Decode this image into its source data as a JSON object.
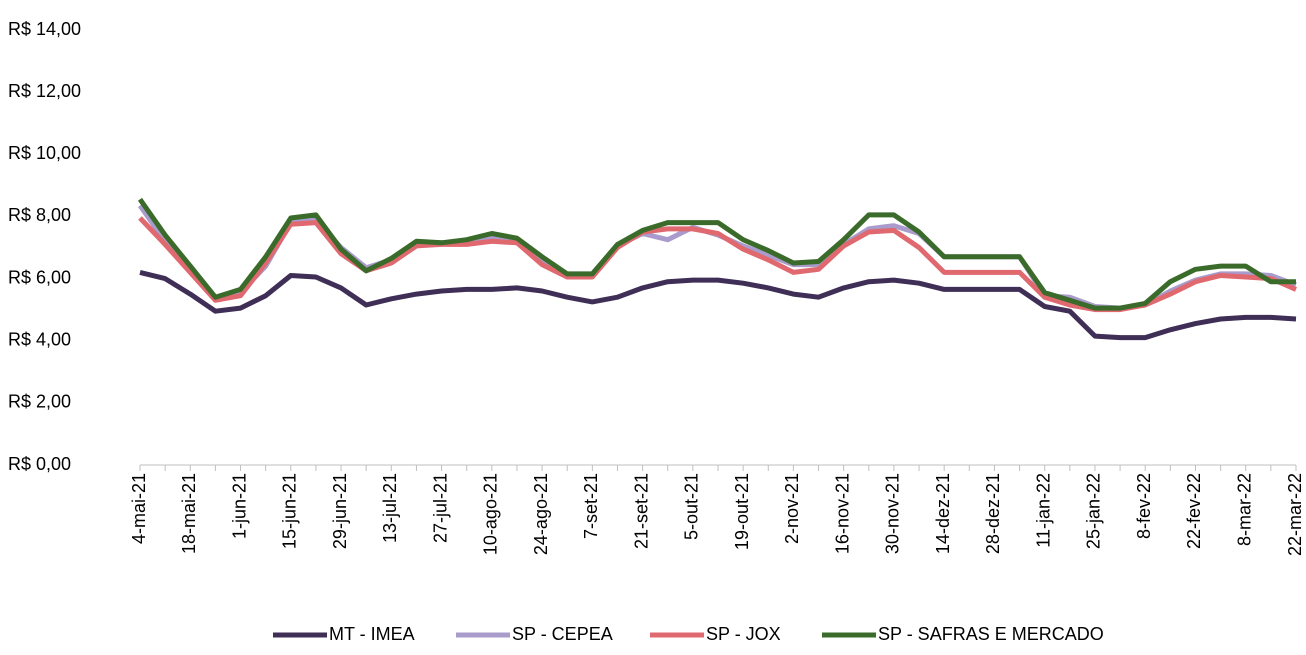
{
  "chart_data": {
    "type": "line",
    "categories": [
      "4-mai-21",
      null,
      "18-mai-21",
      null,
      "1-jun-21",
      null,
      "15-jun-21",
      null,
      "29-jun-21",
      null,
      "13-jul-21",
      null,
      "27-jul-21",
      null,
      "10-ago-21",
      null,
      "24-ago-21",
      null,
      "7-set-21",
      null,
      "21-set-21",
      null,
      "5-out-21",
      null,
      "19-out-21",
      null,
      "2-nov-21",
      null,
      "16-nov-21",
      null,
      "30-nov-21",
      null,
      "14-dez-21",
      null,
      "28-dez-21",
      null,
      "11-jan-22",
      null,
      "25-jan-22",
      null,
      "8-fev-22",
      null,
      "22-fev-22",
      null,
      "8-mar-22",
      null,
      "22-mar-22"
    ],
    "series": [
      {
        "name": "MT - IMEA",
        "color": "#3f2e56",
        "values": [
          6.2,
          6.0,
          5.5,
          4.95,
          5.05,
          5.45,
          6.1,
          6.05,
          5.7,
          5.15,
          5.35,
          5.5,
          5.6,
          5.65,
          5.65,
          5.7,
          5.6,
          5.4,
          5.25,
          5.4,
          5.7,
          5.9,
          5.95,
          5.95,
          5.85,
          5.7,
          5.5,
          5.4,
          5.7,
          5.9,
          5.95,
          5.85,
          5.65,
          5.65,
          5.65,
          5.65,
          5.1,
          4.95,
          4.15,
          4.1,
          4.1,
          4.35,
          4.55,
          4.7,
          4.75,
          4.75,
          4.7
        ]
      },
      {
        "name": "SP - CEPEA",
        "color": "#a99bcb",
        "values": [
          8.35,
          7.2,
          6.4,
          5.35,
          5.55,
          6.4,
          7.8,
          7.9,
          7.0,
          6.35,
          6.6,
          7.15,
          7.15,
          7.2,
          7.3,
          7.2,
          6.6,
          6.1,
          6.1,
          7.05,
          7.45,
          7.25,
          7.65,
          7.4,
          7.05,
          6.75,
          6.45,
          6.45,
          7.1,
          7.6,
          7.7,
          7.45,
          6.7,
          6.7,
          6.7,
          6.7,
          5.45,
          5.4,
          5.1,
          5.05,
          5.15,
          5.6,
          5.95,
          6.15,
          6.15,
          6.1,
          5.8
        ]
      },
      {
        "name": "SP - JOX",
        "color": "#e0686f",
        "values": [
          7.95,
          7.1,
          6.2,
          5.3,
          5.45,
          6.5,
          7.75,
          7.8,
          6.8,
          6.25,
          6.5,
          7.05,
          7.1,
          7.1,
          7.2,
          7.15,
          6.45,
          6.05,
          6.05,
          7.0,
          7.5,
          7.6,
          7.6,
          7.45,
          6.95,
          6.6,
          6.2,
          6.3,
          7.05,
          7.5,
          7.55,
          7.0,
          6.2,
          6.2,
          6.2,
          6.2,
          5.4,
          5.15,
          5.0,
          5.0,
          5.15,
          5.5,
          5.9,
          6.1,
          6.05,
          6.0,
          5.65
        ]
      },
      {
        "name": "SP - SAFRAS E MERCADO",
        "color": "#3a6b2a",
        "values": [
          8.55,
          7.4,
          6.4,
          5.4,
          5.65,
          6.7,
          7.95,
          8.05,
          6.95,
          6.25,
          6.65,
          7.2,
          7.15,
          7.25,
          7.45,
          7.3,
          6.7,
          6.15,
          6.15,
          7.1,
          7.55,
          7.8,
          7.8,
          7.8,
          7.25,
          6.9,
          6.5,
          6.55,
          7.25,
          8.05,
          8.05,
          7.5,
          6.7,
          6.7,
          6.7,
          6.7,
          5.55,
          5.3,
          5.05,
          5.05,
          5.2,
          5.9,
          6.3,
          6.4,
          6.4,
          5.9,
          5.9
        ]
      }
    ],
    "ylim": [
      0,
      14
    ],
    "yticks": [
      {
        "value": 0,
        "label": "R$ 0,00"
      },
      {
        "value": 2,
        "label": "R$ 2,00"
      },
      {
        "value": 4,
        "label": "R$ 4,00"
      },
      {
        "value": 6,
        "label": "R$ 6,00"
      },
      {
        "value": 8,
        "label": "R$ 8,00"
      },
      {
        "value": 10,
        "label": "R$ 10,00"
      },
      {
        "value": 12,
        "label": "R$ 12,00"
      },
      {
        "value": 14,
        "label": "R$ 14,00"
      }
    ],
    "grid": false,
    "legend": "bottom"
  }
}
